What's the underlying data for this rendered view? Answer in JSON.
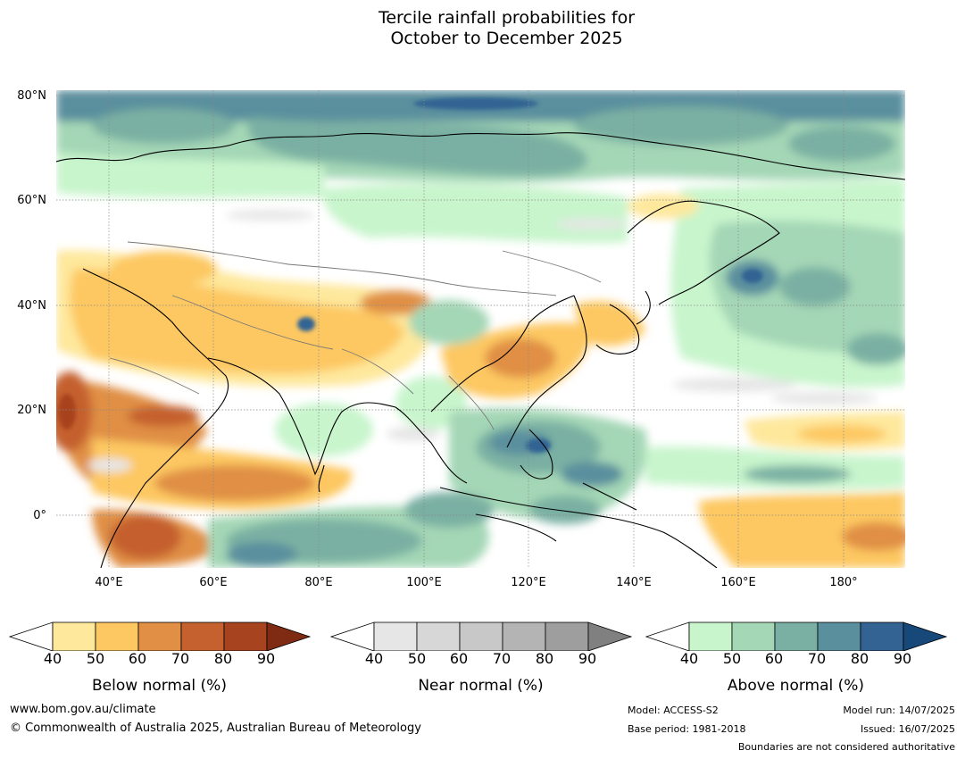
{
  "title_line1": "Tercile rainfall probabilities for",
  "title_line2": "October to December 2025",
  "map": {
    "lat_labels": [
      "80°N",
      "60°N",
      "40°N",
      "20°N",
      "0°"
    ],
    "lon_labels": [
      "40°E",
      "60°E",
      "80°E",
      "100°E",
      "120°E",
      "140°E",
      "160°E",
      "180°"
    ]
  },
  "colorbars": [
    {
      "caption": "Below normal (%)",
      "ticks": [
        "40",
        "50",
        "60",
        "70",
        "80",
        "90"
      ],
      "colors": [
        "#ffffff",
        "#fee89c",
        "#fdc862",
        "#e08f44",
        "#c5612f",
        "#a8431f",
        "#7f2a12"
      ]
    },
    {
      "caption": "Near normal (%)",
      "ticks": [
        "40",
        "50",
        "60",
        "70",
        "80",
        "90"
      ],
      "colors": [
        "#ffffff",
        "#e6e6e6",
        "#d7d7d7",
        "#c8c8c8",
        "#b4b4b4",
        "#9e9e9e",
        "#808080"
      ]
    },
    {
      "caption": "Above normal (%)",
      "ticks": [
        "40",
        "50",
        "60",
        "70",
        "80",
        "90"
      ],
      "colors": [
        "#ffffff",
        "#c8f5cc",
        "#a4d7b6",
        "#7ab0a3",
        "#5a8f9e",
        "#336393",
        "#17487a"
      ]
    }
  ],
  "footer": {
    "website": "www.bom.gov.au/climate",
    "copyright": "© Commonwealth of Australia 2025, Australian Bureau of Meteorology",
    "model": "Model: ACCESS-S2",
    "base_period": "Base period: 1981-2018",
    "model_run": "Model run: 14/07/2025",
    "issued": "Issued: 16/07/2025",
    "disclaimer": "Boundaries are not considered authoritative"
  }
}
